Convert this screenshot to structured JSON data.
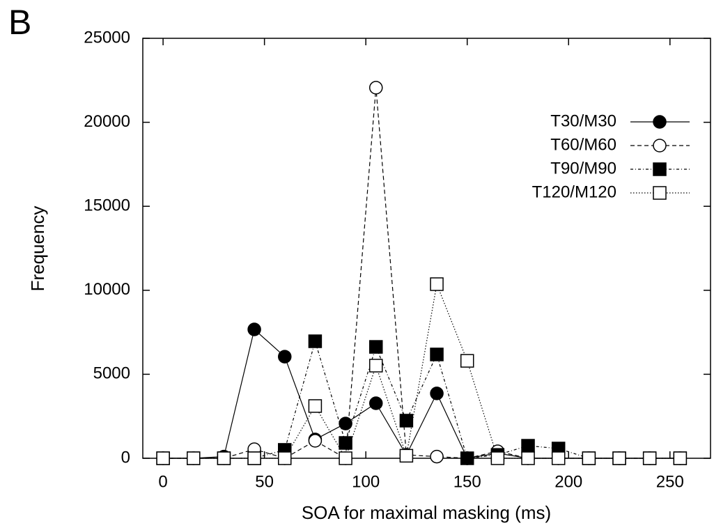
{
  "chart_data": {
    "type": "line",
    "panel_label": "B",
    "x_label": "SOA for maximal masking (ms)",
    "y_label": "Frequency",
    "x": [
      0,
      15,
      30,
      45,
      60,
      75,
      90,
      105,
      120,
      135,
      150,
      165,
      180,
      195,
      210,
      225,
      240,
      255
    ],
    "series": [
      {
        "name": "T30/M30",
        "color": "#000000",
        "marker": "circle",
        "filled": true,
        "dash": "solid",
        "values": [
          0,
          0,
          100,
          7670,
          6050,
          1120,
          2070,
          3275,
          200,
          3860,
          0,
          300,
          0,
          0,
          0,
          0,
          0,
          0
        ]
      },
      {
        "name": "T60/M60",
        "color": "#000000",
        "marker": "circle",
        "filled": false,
        "dash": "dashed",
        "values": [
          0,
          0,
          0,
          540,
          0,
          1040,
          0,
          22060,
          200,
          100,
          0,
          415,
          0,
          0,
          0,
          0,
          0,
          0
        ]
      },
      {
        "name": "T90/M90",
        "color": "#000000",
        "marker": "square",
        "filled": true,
        "dash": "dashdot",
        "values": [
          0,
          0,
          0,
          0,
          500,
          6965,
          912,
          6630,
          2240,
          6180,
          0,
          200,
          745,
          580,
          0,
          0,
          0,
          0
        ]
      },
      {
        "name": "T120/M120",
        "color": "#000000",
        "marker": "square",
        "filled": false,
        "dash": "dotted",
        "values": [
          0,
          0,
          0,
          0,
          0,
          3110,
          0,
          5515,
          150,
          10365,
          5800,
          0,
          0,
          0,
          0,
          0,
          0,
          0
        ]
      }
    ],
    "xlim": [
      -10,
      270
    ],
    "xticks": [
      0,
      50,
      100,
      150,
      200,
      250
    ],
    "ylim": [
      0,
      25000
    ],
    "yticks": [
      0,
      5000,
      10000,
      15000,
      20000,
      25000
    ],
    "grid": false,
    "legend": "upper right"
  }
}
